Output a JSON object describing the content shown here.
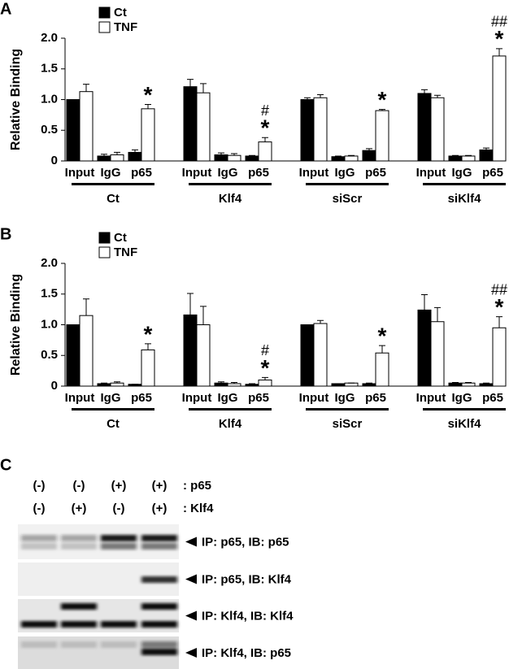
{
  "chart_data": [
    {
      "type": "bar",
      "panel_label": "A",
      "ylabel": "Relative Binding",
      "categories": [
        "Input",
        "IgG",
        "p65",
        "Input",
        "IgG",
        "p65",
        "Input",
        "IgG",
        "p65",
        "Input",
        "IgG",
        "p65"
      ],
      "groups": [
        "Ct",
        "Klf4",
        "siScr",
        "siKlf4"
      ],
      "series": [
        {
          "name": "Ct",
          "color": "#000000",
          "values": [
            1.0,
            0.08,
            0.14,
            1.21,
            0.1,
            0.08,
            1.0,
            0.07,
            0.17,
            1.1,
            0.08,
            0.18
          ],
          "errors": [
            0.0,
            0.03,
            0.04,
            0.12,
            0.03,
            0.01,
            0.03,
            0.01,
            0.03,
            0.06,
            0.01,
            0.03
          ]
        },
        {
          "name": "TNF",
          "color": "#ffffff",
          "values": [
            1.13,
            0.1,
            0.85,
            1.11,
            0.09,
            0.31,
            1.03,
            0.08,
            0.82,
            1.03,
            0.08,
            1.71
          ],
          "errors": [
            0.12,
            0.04,
            0.07,
            0.15,
            0.03,
            0.07,
            0.05,
            0.01,
            0.02,
            0.04,
            0.01,
            0.12
          ]
        }
      ],
      "annotations": [
        null,
        null,
        [
          "*"
        ],
        null,
        null,
        [
          "#",
          "*"
        ],
        null,
        null,
        [
          "*"
        ],
        null,
        null,
        [
          "##",
          "*"
        ]
      ],
      "ylim": [
        0,
        2
      ],
      "yticks": [
        0,
        0.5,
        {
          "value": 1,
          "label": "1.0"
        },
        1.5,
        {
          "value": 2,
          "label": "2.0"
        }
      ],
      "legend": "upper-left"
    },
    {
      "type": "bar",
      "panel_label": "B",
      "ylabel": "Relative Binding",
      "categories": [
        "Input",
        "IgG",
        "p65",
        "Input",
        "IgG",
        "p65",
        "Input",
        "IgG",
        "p65",
        "Input",
        "IgG",
        "p65"
      ],
      "groups": [
        "Ct",
        "Klf4",
        "siScr",
        "siKlf4"
      ],
      "series": [
        {
          "name": "Ct",
          "color": "#000000",
          "values": [
            1.0,
            0.04,
            0.03,
            1.16,
            0.05,
            0.03,
            1.0,
            0.04,
            0.04,
            1.24,
            0.05,
            0.04
          ],
          "errors": [
            0.0,
            0.01,
            0.0,
            0.35,
            0.02,
            0.01,
            0.0,
            0.0,
            0.01,
            0.25,
            0.01,
            0.01
          ]
        },
        {
          "name": "TNF",
          "color": "#ffffff",
          "values": [
            1.15,
            0.05,
            0.59,
            1.0,
            0.04,
            0.1,
            1.02,
            0.05,
            0.54,
            1.05,
            0.05,
            0.95
          ],
          "errors": [
            0.27,
            0.02,
            0.1,
            0.3,
            0.02,
            0.04,
            0.05,
            0.0,
            0.12,
            0.23,
            0.01,
            0.18
          ]
        }
      ],
      "annotations": [
        null,
        null,
        [
          "*"
        ],
        null,
        null,
        [
          "#",
          "*"
        ],
        null,
        null,
        [
          "*"
        ],
        null,
        null,
        [
          "##",
          "*"
        ]
      ],
      "ylim": [
        0,
        2
      ],
      "yticks": [
        0,
        0.5,
        {
          "value": 1,
          "label": "1.0"
        },
        1.5,
        {
          "value": 2,
          "label": "2.0"
        }
      ],
      "legend": "upper-left"
    }
  ],
  "blot": {
    "panel_label": "C",
    "conditions": [
      {
        "states": [
          "(-)",
          "(-)",
          "(+)",
          "(+)"
        ],
        "label": ": p65"
      },
      {
        "states": [
          "(-)",
          "(+)",
          "(-)",
          "(+)"
        ],
        "label": ": Klf4"
      }
    ],
    "rows": [
      "IP: p65, IB: p65",
      "IP: p65, IB: Klf4",
      "IP: Klf4, IB: Klf4",
      "IP: Klf4, IB: p65"
    ]
  }
}
